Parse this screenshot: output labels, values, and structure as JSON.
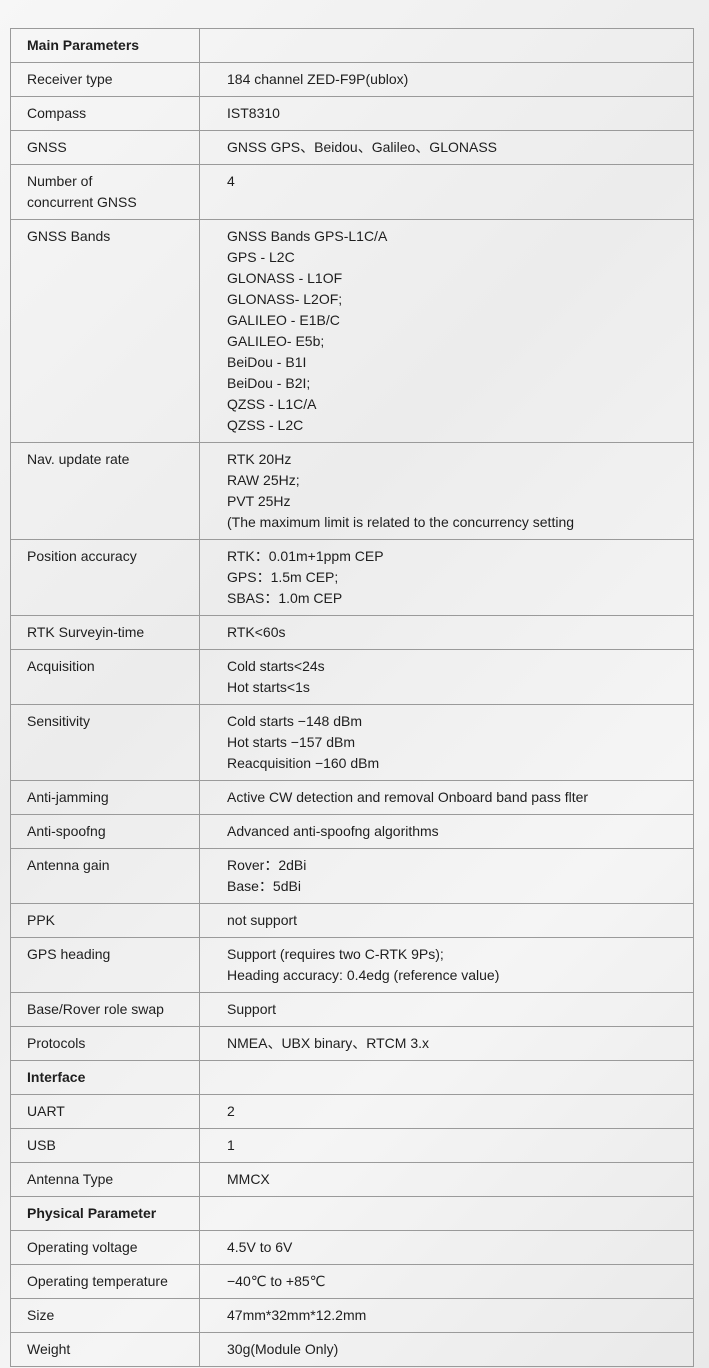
{
  "rows": [
    {
      "section": true,
      "label": "Main Parameters",
      "value": []
    },
    {
      "label": "Receiver type",
      "value": [
        "184 channel ZED-F9P(ublox)"
      ]
    },
    {
      "label": "Compass",
      "value": [
        "IST8310"
      ]
    },
    {
      "label": "GNSS",
      "value": [
        "GNSS GPS、Beidou、Galileo、GLONASS"
      ]
    },
    {
      "label": "Number of\nconcurrent GNSS",
      "value": [
        "4"
      ]
    },
    {
      "label": "GNSS Bands",
      "value": [
        "GNSS Bands GPS-L1C/A",
        "GPS - L2C",
        "GLONASS - L1OF",
        "GLONASS- L2OF;",
        "GALILEO - E1B/C",
        "GALILEO- E5b;",
        "BeiDou - B1I",
        "BeiDou - B2I;",
        "QZSS - L1C/A",
        "QZSS - L2C"
      ]
    },
    {
      "label": "Nav. update rate",
      "value": [
        "RTK 20Hz",
        "RAW 25Hz;",
        "PVT 25Hz",
        "(The maximum limit is related to the concurrency setting"
      ]
    },
    {
      "label": "Position accuracy",
      "value": [
        "RTK：0.01m+1ppm CEP",
        "GPS：1.5m CEP;",
        "SBAS：1.0m CEP"
      ]
    },
    {
      "label": "RTK Surveyin-time",
      "value": [
        "RTK<60s"
      ]
    },
    {
      "label": "Acquisition",
      "value": [
        "Cold starts<24s",
        "Hot starts<1s"
      ]
    },
    {
      "label": "Sensitivity",
      "value": [
        "Cold starts −148 dBm",
        "Hot starts −157 dBm",
        "Reacquisition −160 dBm"
      ]
    },
    {
      "label": "Anti-jamming",
      "value": [
        "Active CW detection and removal Onboard band pass flter"
      ]
    },
    {
      "label": "Anti-spoofng",
      "value": [
        "Advanced anti-spoofng algorithms"
      ]
    },
    {
      "label": "Antenna gain",
      "value": [
        "Rover：2dBi",
        "Base：5dBi"
      ]
    },
    {
      "label": "PPK",
      "value": [
        "not support"
      ]
    },
    {
      "label": "GPS heading",
      "value": [
        "Support (requires two C-RTK 9Ps);",
        "Heading accuracy: 0.4edg (reference value)"
      ]
    },
    {
      "label": "Base/Rover role swap",
      "value": [
        "Support"
      ]
    },
    {
      "label": "Protocols",
      "value": [
        "NMEA、UBX binary、RTCM 3.x"
      ]
    },
    {
      "section": true,
      "label": "Interface",
      "value": []
    },
    {
      "label": "UART",
      "value": [
        "2"
      ]
    },
    {
      "label": "USB",
      "value": [
        "1"
      ]
    },
    {
      "label": "Antenna Type",
      "value": [
        "MMCX"
      ]
    },
    {
      "section": true,
      "label": "Physical Parameter",
      "value": []
    },
    {
      "label": "Operating voltage",
      "value": [
        "4.5V to 6V"
      ]
    },
    {
      "label": "Operating temperature",
      "value": [
        "−40℃ to +85℃"
      ]
    },
    {
      "label": "Size",
      "value": [
        "47mm*32mm*12.2mm"
      ]
    },
    {
      "label": "Weight",
      "value": [
        "30g(Module Only)"
      ]
    }
  ]
}
